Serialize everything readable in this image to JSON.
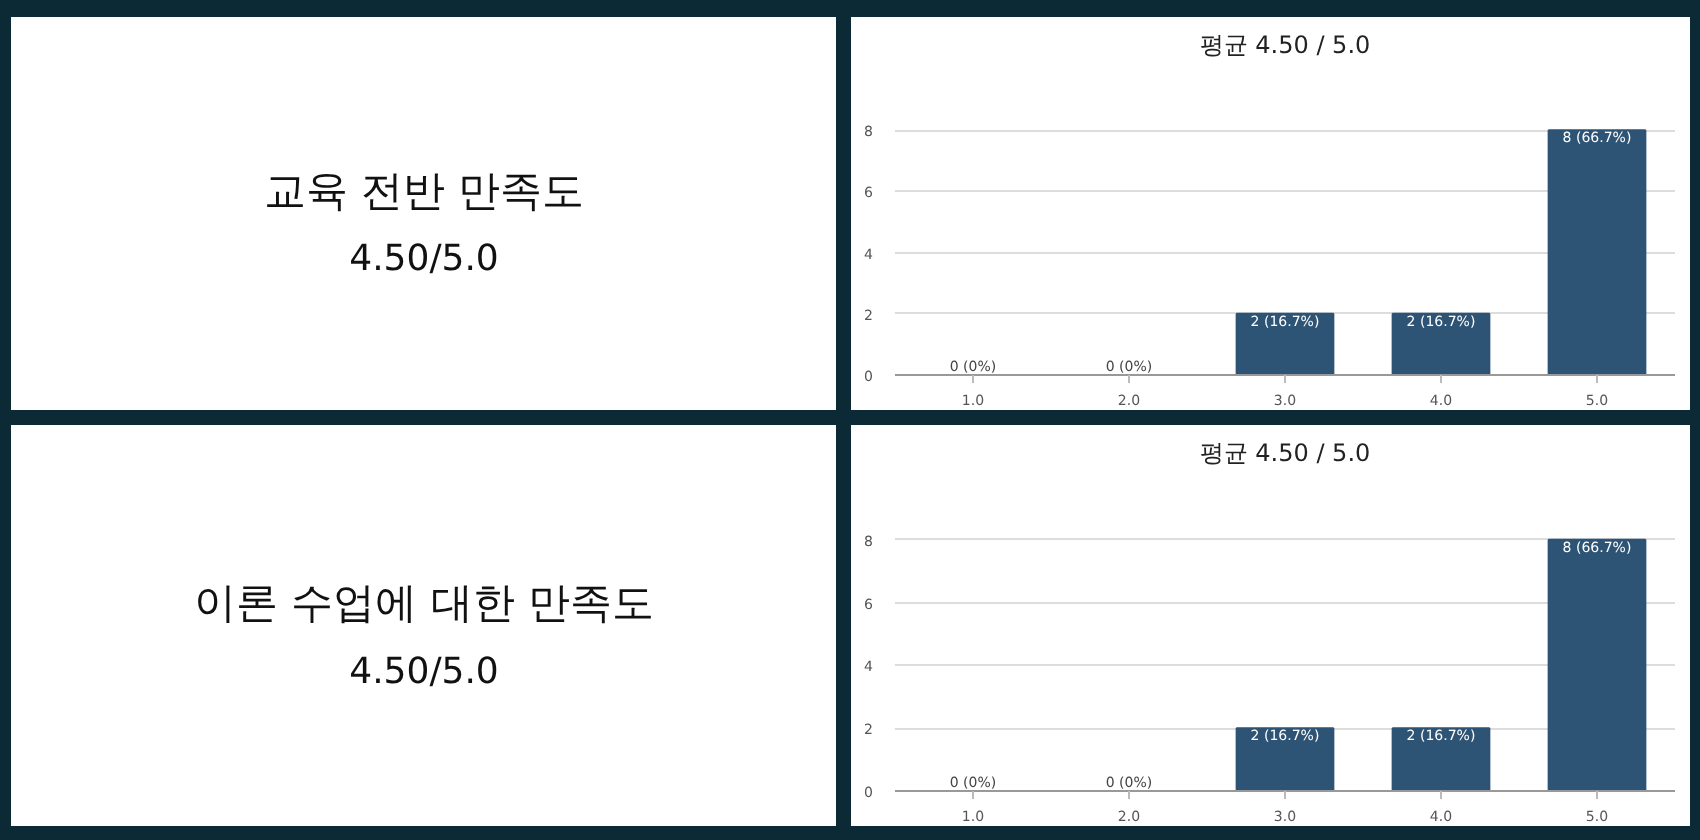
{
  "chart_data": [
    {
      "type": "other",
      "title": "교육 전반 만족도",
      "subtitle": "4.50/5.0"
    },
    {
      "type": "bar",
      "title": "평균 4.50 / 5.0",
      "categories": [
        "1.0",
        "2.0",
        "3.0",
        "4.0",
        "5.0"
      ],
      "values": [
        0,
        0,
        2,
        2,
        8
      ],
      "color": "#2d5375",
      "value_labels": [
        "0 (0%)",
        "0 (0%)",
        "2 (16.7%)",
        "2 (16.7%)",
        "8 (66.7%)"
      ],
      "ylim": [
        0,
        10
      ],
      "yticks": [
        0,
        2,
        4,
        6,
        8
      ],
      "grid": "y"
    },
    {
      "type": "other",
      "title": "이론 수업에 대한 만족도",
      "subtitle": "4.50/5.0"
    },
    {
      "type": "bar",
      "title": "평균 4.50 / 5.0",
      "categories": [
        "1.0",
        "2.0",
        "3.0",
        "4.0",
        "5.0"
      ],
      "values": [
        0,
        0,
        2,
        2,
        8
      ],
      "color": "#2d5375",
      "value_labels": [
        "0 (0%)",
        "0 (0%)",
        "2 (16.7%)",
        "2 (16.7%)",
        "8 (66.7%)"
      ],
      "ylim": [
        0,
        10
      ],
      "yticks": [
        0,
        2,
        4,
        6,
        8
      ],
      "grid": "y"
    }
  ]
}
